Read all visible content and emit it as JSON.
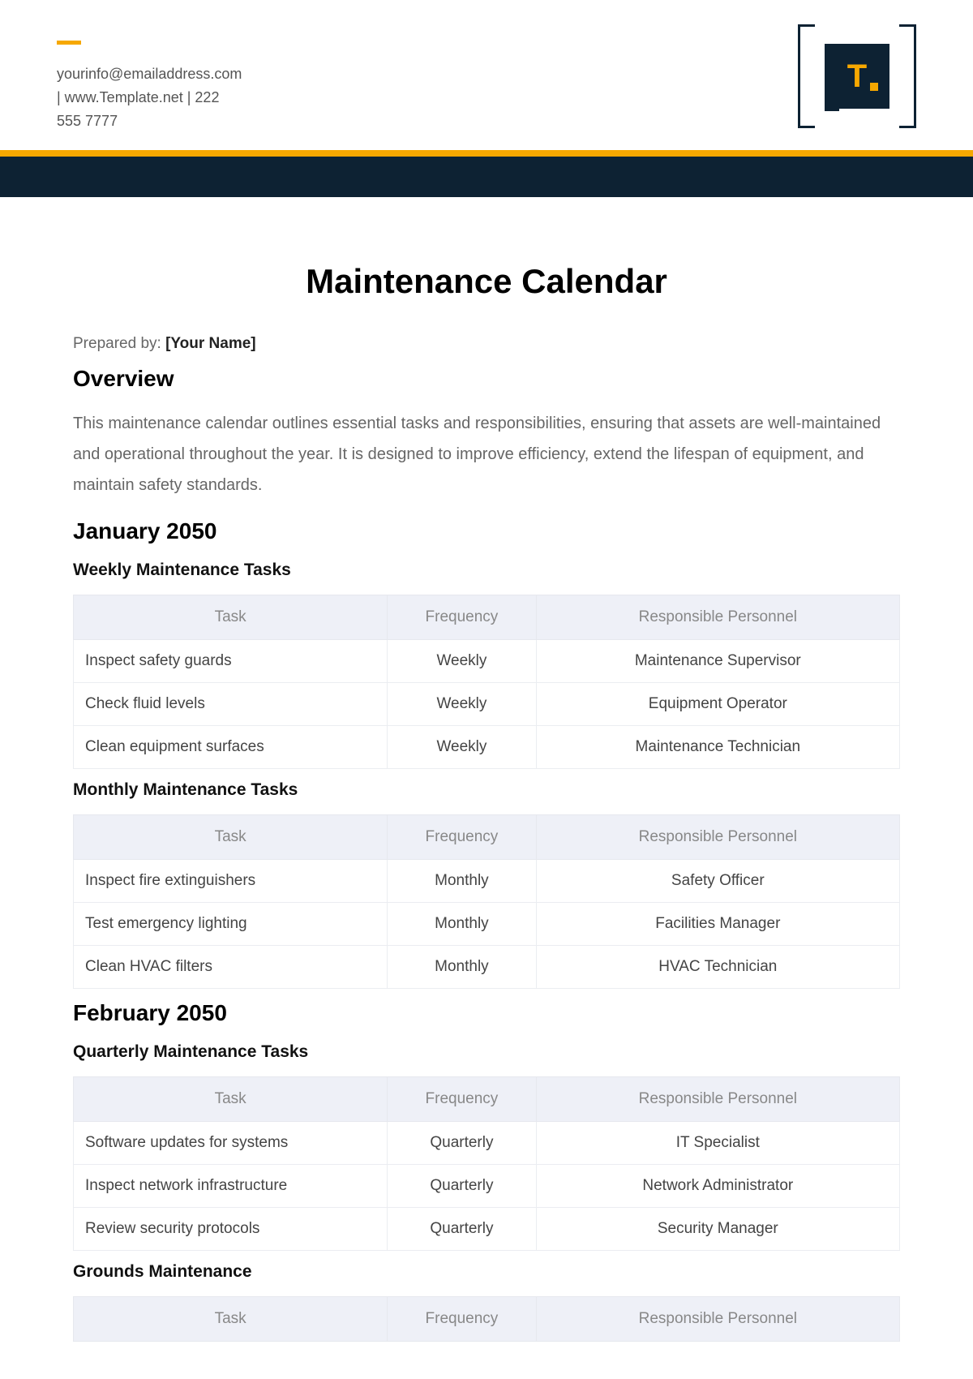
{
  "header": {
    "email": "yourinfo@emailaddress.com",
    "website_line": "|  www.Template.net  |  222",
    "phone": "555 7777",
    "logo_text": "T"
  },
  "doc": {
    "title": "Maintenance Calendar",
    "prepared_label": "Prepared by:",
    "prepared_value": "[Your Name]",
    "overview_heading": "Overview",
    "overview_text": "This maintenance calendar outlines essential tasks and responsibilities, ensuring that assets are well-maintained and operational throughout the year. It is designed to improve efficiency, extend the lifespan of equipment, and maintain safety standards."
  },
  "columns": {
    "task": "Task",
    "frequency": "Frequency",
    "personnel": "Responsible Personnel"
  },
  "sections": [
    {
      "month": "January 2050",
      "groups": [
        {
          "title": "Weekly Maintenance Tasks",
          "rows": [
            {
              "task": "Inspect safety guards",
              "freq": "Weekly",
              "person": "Maintenance Supervisor"
            },
            {
              "task": "Check fluid levels",
              "freq": "Weekly",
              "person": "Equipment Operator"
            },
            {
              "task": "Clean equipment surfaces",
              "freq": "Weekly",
              "person": "Maintenance Technician"
            }
          ]
        },
        {
          "title": "Monthly Maintenance Tasks",
          "rows": [
            {
              "task": "Inspect fire extinguishers",
              "freq": "Monthly",
              "person": "Safety Officer"
            },
            {
              "task": "Test emergency lighting",
              "freq": "Monthly",
              "person": "Facilities Manager"
            },
            {
              "task": "Clean HVAC filters",
              "freq": "Monthly",
              "person": "HVAC Technician"
            }
          ]
        }
      ]
    },
    {
      "month": "February 2050",
      "groups": [
        {
          "title": "Quarterly Maintenance Tasks",
          "rows": [
            {
              "task": "Software updates for systems",
              "freq": "Quarterly",
              "person": "IT Specialist"
            },
            {
              "task": "Inspect network infrastructure",
              "freq": "Quarterly",
              "person": "Network Administrator"
            },
            {
              "task": "Review security protocols",
              "freq": "Quarterly",
              "person": "Security Manager"
            }
          ]
        },
        {
          "title": "Grounds Maintenance",
          "rows": []
        }
      ]
    }
  ],
  "colors": {
    "accent": "#f6a800",
    "dark": "#0d2233",
    "header_bg": "#eef0f7",
    "border": "#ebedf1"
  }
}
